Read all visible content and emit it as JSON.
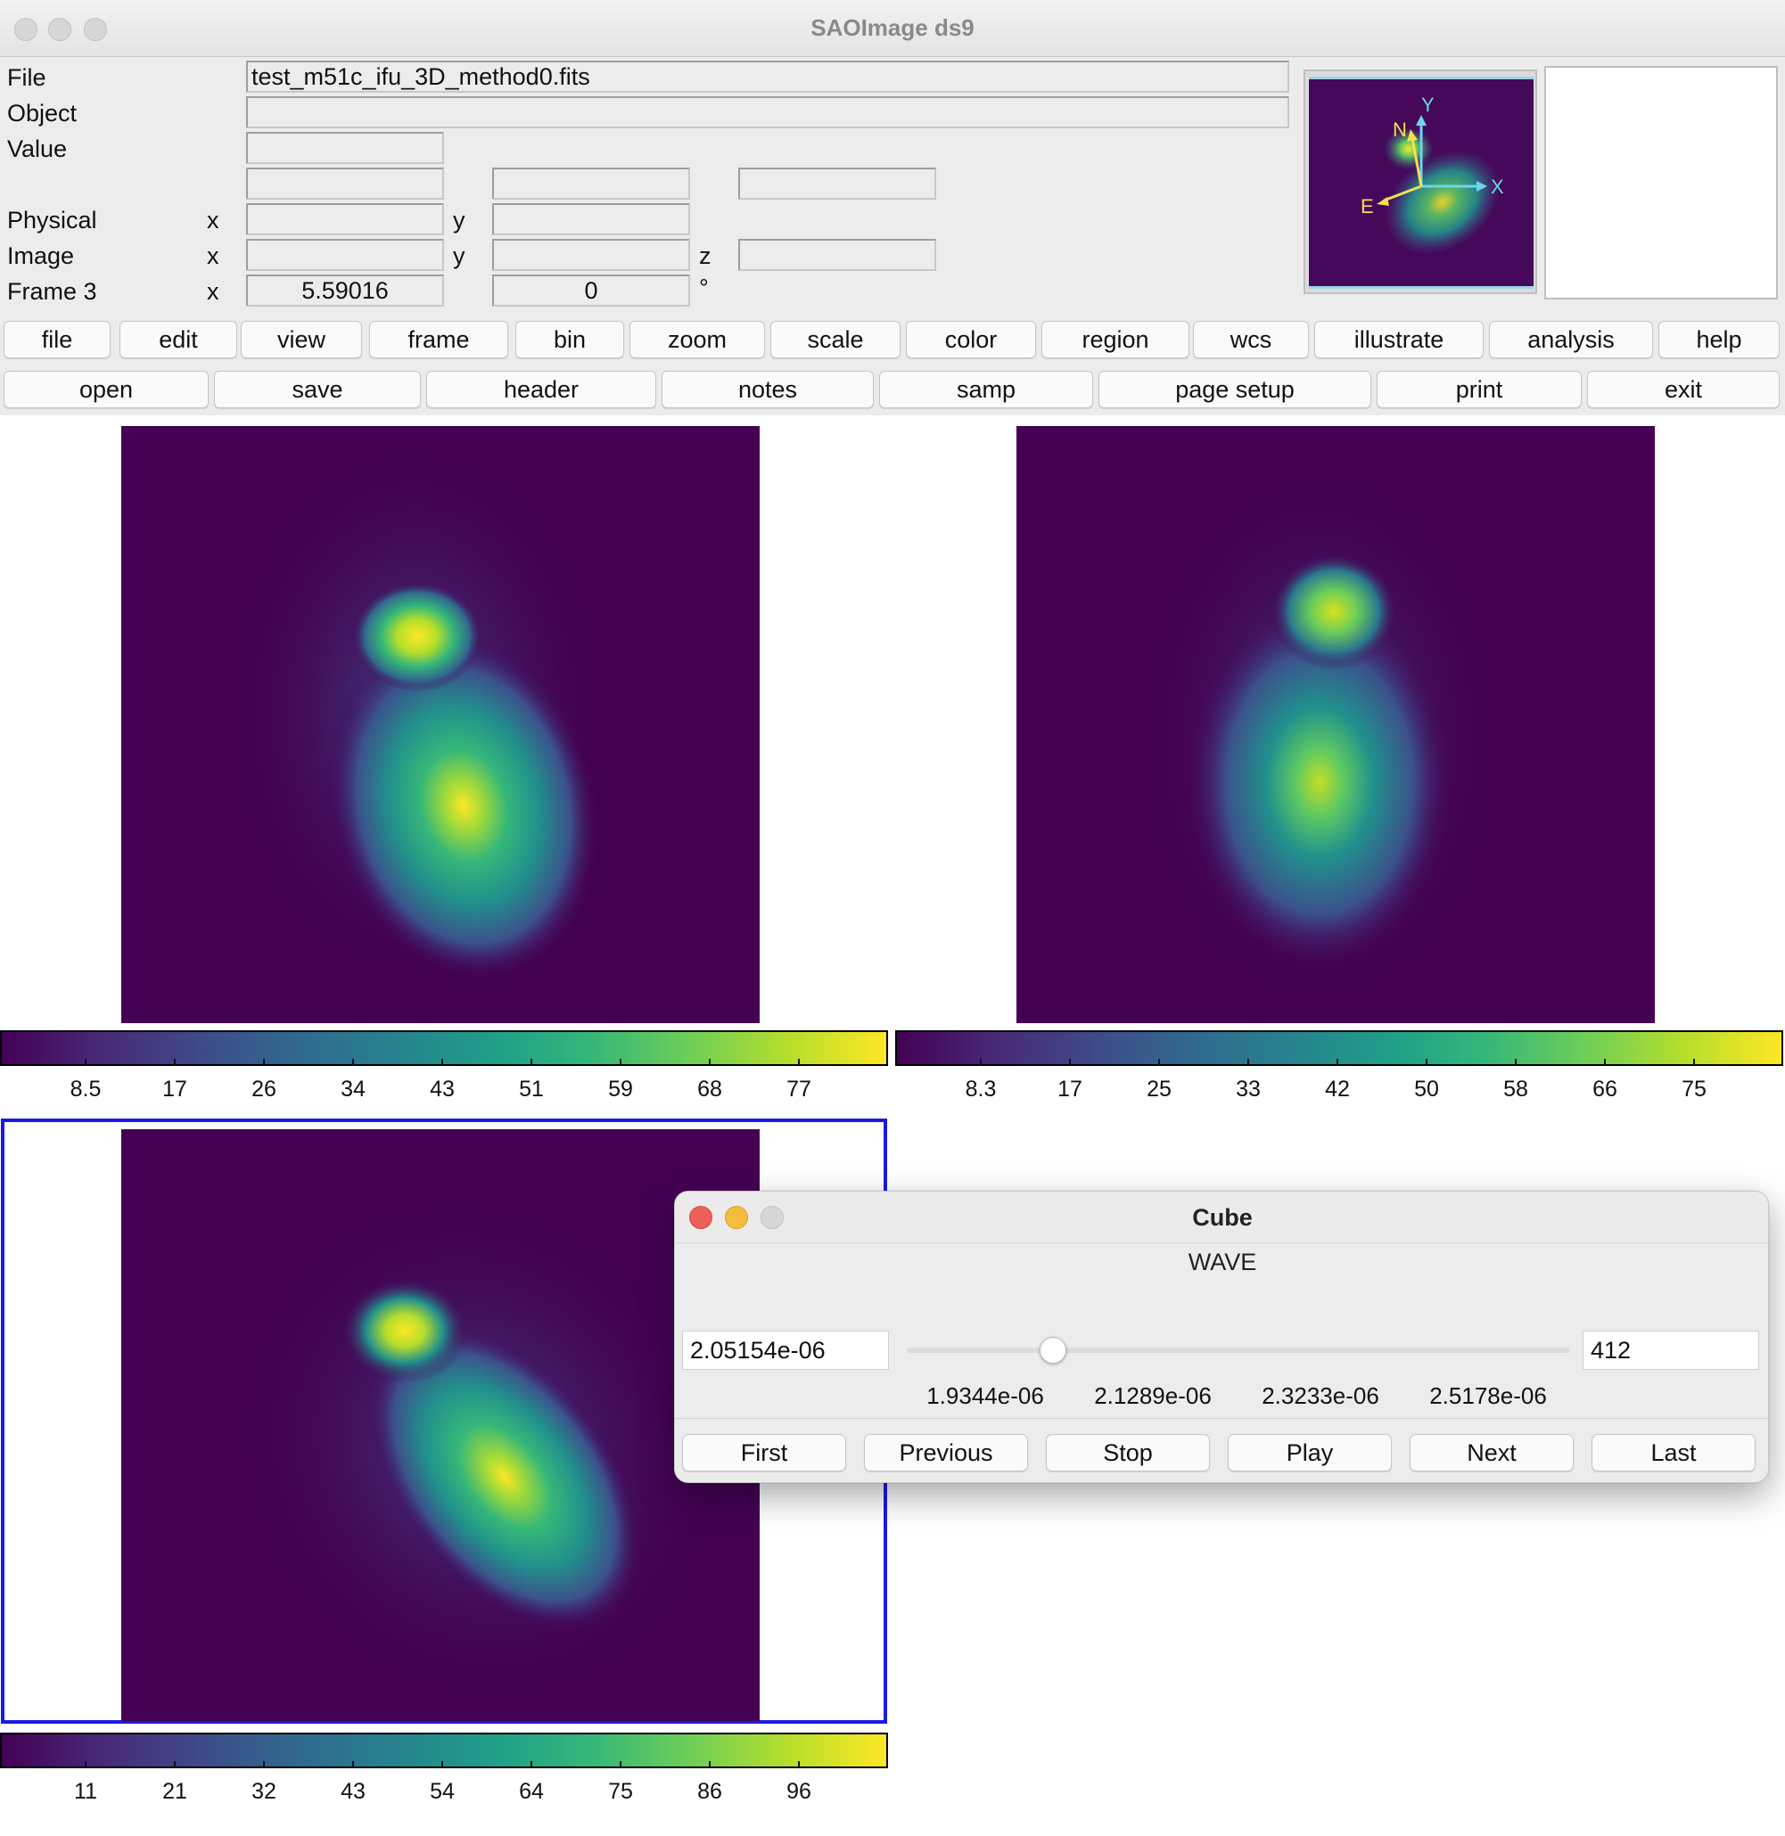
{
  "window": {
    "title": "SAOImage ds9"
  },
  "info": {
    "file_label": "File",
    "file_value": "test_m51c_ifu_3D_method0.fits",
    "object_label": "Object",
    "object_value": "",
    "value_label": "Value",
    "physical_label": "Physical",
    "image_label": "Image",
    "frame_label": "Frame 3",
    "x_label": "x",
    "y_label": "y",
    "z_label": "z",
    "frame_x_value": "5.59016",
    "frame_y_value": "0",
    "degree_symbol": "°"
  },
  "panner": {
    "n_label": "N",
    "e_label": "E",
    "x_label": "X",
    "y_label": "Y"
  },
  "menubar": [
    "file",
    "edit",
    "view",
    "frame",
    "bin",
    "zoom",
    "scale",
    "color",
    "region",
    "wcs",
    "illustrate",
    "analysis",
    "help"
  ],
  "buttonbar": [
    "open",
    "save",
    "header",
    "notes",
    "samp",
    "page setup",
    "print",
    "exit"
  ],
  "colorbars": {
    "frame1": [
      "8.5",
      "17",
      "26",
      "34",
      "43",
      "51",
      "59",
      "68",
      "77"
    ],
    "frame2": [
      "8.3",
      "17",
      "25",
      "33",
      "42",
      "50",
      "58",
      "66",
      "75"
    ],
    "frame3": [
      "11",
      "21",
      "32",
      "43",
      "54",
      "64",
      "75",
      "86",
      "96"
    ]
  },
  "colormap": "viridis",
  "cube": {
    "title": "Cube",
    "axis_label": "WAVE",
    "wave_value": "2.05154e-06",
    "slice_value": "412",
    "slider_fraction": 0.22,
    "slider_labels": [
      "1.9344e-06",
      "2.1289e-06",
      "2.3233e-06",
      "2.5178e-06"
    ],
    "buttons": {
      "first": "First",
      "previous": "Previous",
      "stop": "Stop",
      "play": "Play",
      "next": "Next",
      "last": "Last"
    }
  }
}
